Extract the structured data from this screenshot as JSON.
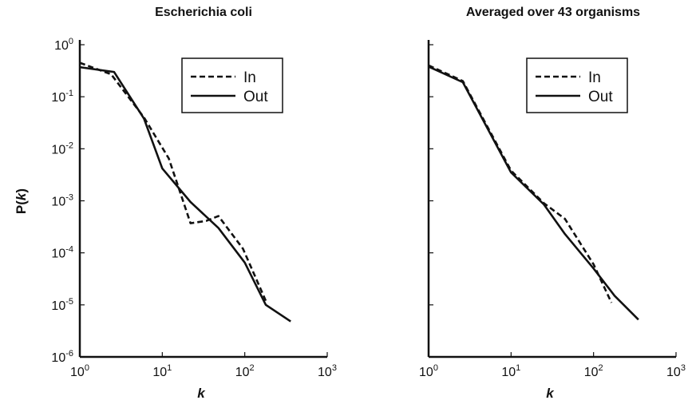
{
  "chart_data": [
    {
      "type": "line",
      "title": "Escherichia coli",
      "xlabel": "k",
      "ylabel": "P(k)",
      "x_scale": "log",
      "y_scale": "log",
      "xlim": [
        1,
        1000
      ],
      "ylim": [
        1e-06,
        1
      ],
      "x_ticks": [
        1,
        10,
        100,
        1000
      ],
      "y_ticks": [
        1,
        0.1,
        0.01,
        0.001,
        0.0001,
        1e-05,
        1e-06
      ],
      "legend": "top-right",
      "series": [
        {
          "name": "In",
          "style": "dashed",
          "x": [
            1,
            2.4,
            6,
            12,
            22,
            34,
            48,
            95,
            180
          ],
          "y": [
            0.45,
            0.27,
            0.04,
            0.0065,
            0.00037,
            0.00041,
            0.00051,
            0.00012,
            1.2e-05
          ]
        },
        {
          "name": "Out",
          "style": "solid",
          "x": [
            1,
            2.6,
            6,
            10,
            22,
            48,
            100,
            180,
            360
          ],
          "y": [
            0.37,
            0.3,
            0.038,
            0.0042,
            0.00095,
            0.0003,
            6.5e-05,
            1e-05,
            4.8e-06
          ]
        }
      ]
    },
    {
      "type": "line",
      "title": "Averaged over 43 organisms",
      "xlabel": "k",
      "ylabel": "",
      "x_scale": "log",
      "y_scale": "log",
      "xlim": [
        1,
        1000
      ],
      "ylim": [
        1e-06,
        1
      ],
      "x_ticks": [
        1,
        10,
        100,
        1000
      ],
      "y_ticks": [
        1,
        0.1,
        0.01,
        0.001,
        0.0001,
        1e-05,
        1e-06
      ],
      "legend": "top-right",
      "series": [
        {
          "name": "In",
          "style": "dashed",
          "x": [
            1,
            2.6,
            10,
            25,
            45,
            100,
            165
          ],
          "y": [
            0.4,
            0.2,
            0.0038,
            0.0009,
            0.00045,
            6e-05,
            1.1e-05
          ]
        },
        {
          "name": "Out",
          "style": "solid",
          "x": [
            1,
            2.6,
            10,
            25,
            45,
            100,
            180,
            350
          ],
          "y": [
            0.38,
            0.19,
            0.0035,
            0.00085,
            0.00023,
            5e-05,
            1.5e-05,
            5.2e-06
          ]
        }
      ]
    }
  ]
}
